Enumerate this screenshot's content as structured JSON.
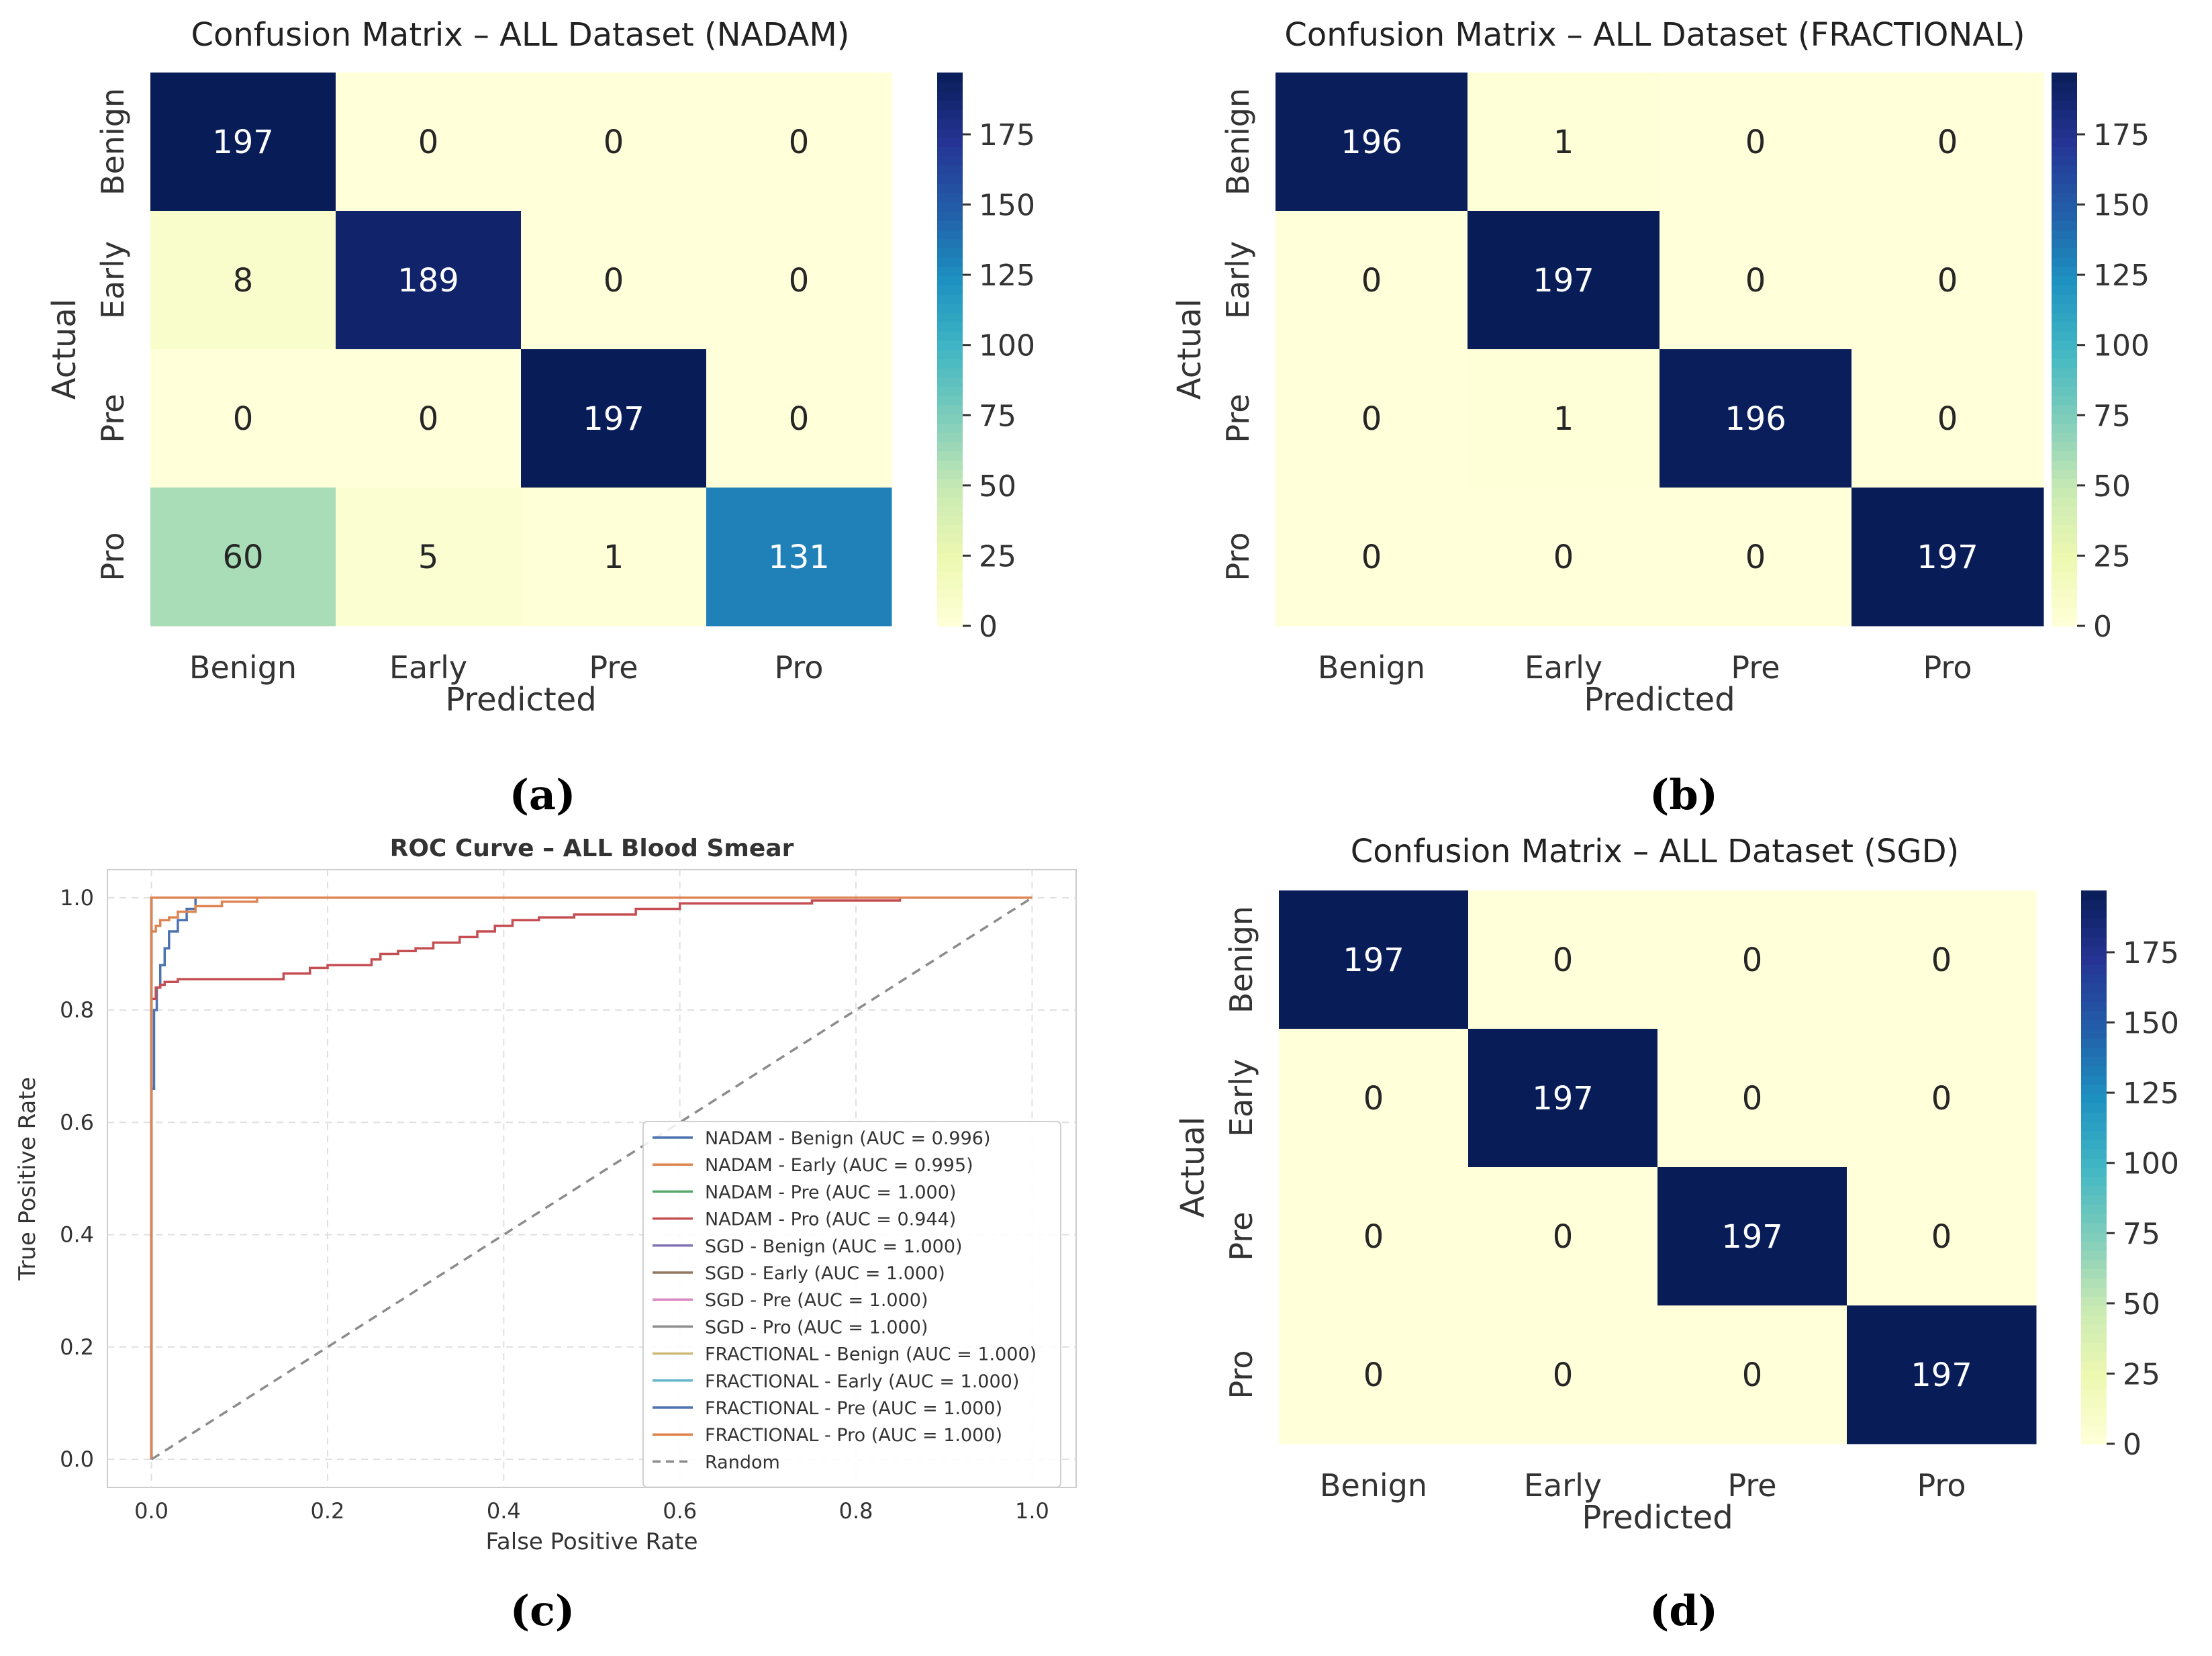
{
  "colors": {
    "cmap": [
      "#ffffd9",
      "#edf8b1",
      "#c7e9b4",
      "#7fcdbb",
      "#41b6c4",
      "#1d91c0",
      "#225ea8",
      "#253494",
      "#081d58"
    ],
    "random_line": "#8c8c8c",
    "grid": "#e0e0e0",
    "axis_text": "#222222"
  },
  "panels": {
    "a": {
      "caption": "(a)"
    },
    "b": {
      "caption": "(b)"
    },
    "c": {
      "caption": "(c)"
    },
    "d": {
      "caption": "(d)"
    }
  },
  "chart_data": [
    {
      "type": "heatmap",
      "panel": "a",
      "title": "Confusion Matrix – ALL Dataset (NADAM)",
      "xlabel": "Predicted",
      "ylabel": "Actual",
      "x_categories": [
        "Benign",
        "Early",
        "Pre",
        "Pro"
      ],
      "y_categories": [
        "Benign",
        "Early",
        "Pre",
        "Pro"
      ],
      "matrix": [
        [
          197,
          0,
          0,
          0
        ],
        [
          8,
          189,
          0,
          0
        ],
        [
          0,
          0,
          197,
          0
        ],
        [
          60,
          5,
          1,
          131
        ]
      ],
      "vmin": 0,
      "vmax": 197,
      "colorbar_ticks": [
        0,
        25,
        50,
        75,
        100,
        125,
        150,
        175
      ]
    },
    {
      "type": "heatmap",
      "panel": "b",
      "title": "Confusion Matrix – ALL Dataset (FRACTIONAL)",
      "xlabel": "Predicted",
      "ylabel": "Actual",
      "x_categories": [
        "Benign",
        "Early",
        "Pre",
        "Pro"
      ],
      "y_categories": [
        "Benign",
        "Early",
        "Pre",
        "Pro"
      ],
      "matrix": [
        [
          196,
          1,
          0,
          0
        ],
        [
          0,
          197,
          0,
          0
        ],
        [
          0,
          1,
          196,
          0
        ],
        [
          0,
          0,
          0,
          197
        ]
      ],
      "vmin": 0,
      "vmax": 197,
      "colorbar_ticks": [
        0,
        25,
        50,
        75,
        100,
        125,
        150,
        175
      ]
    },
    {
      "type": "line",
      "panel": "c",
      "title": "ROC Curve – ALL Blood Smear",
      "xlabel": "False Positive Rate",
      "ylabel": "True Positive Rate",
      "xlim": [
        -0.05,
        1.05
      ],
      "ylim": [
        -0.05,
        1.05
      ],
      "xticks": [
        0.0,
        0.2,
        0.4,
        0.6,
        0.8,
        1.0
      ],
      "yticks": [
        0.0,
        0.2,
        0.4,
        0.6,
        0.8,
        1.0
      ],
      "tick_labels": [
        "0.0",
        "0.2",
        "0.4",
        "0.6",
        "0.8",
        "1.0"
      ],
      "grid": true,
      "legend_position": "lower-right",
      "series": [
        {
          "name": "NADAM - Benign (AUC = 0.996)",
          "color": "#4c72b0",
          "x": [
            0,
            0,
            0.003,
            0.003,
            0.006,
            0.006,
            0.01,
            0.01,
            0.015,
            0.015,
            0.02,
            0.02,
            0.03,
            0.03,
            0.04,
            0.04,
            0.05,
            0.05,
            1
          ],
          "y": [
            0,
            0.66,
            0.66,
            0.8,
            0.8,
            0.84,
            0.84,
            0.88,
            0.88,
            0.91,
            0.91,
            0.94,
            0.94,
            0.96,
            0.96,
            0.98,
            0.98,
            1,
            1
          ]
        },
        {
          "name": "NADAM - Early (AUC = 0.995)",
          "color": "#dd8452",
          "x": [
            0,
            0,
            0.005,
            0.005,
            0.01,
            0.01,
            0.02,
            0.02,
            0.03,
            0.03,
            0.05,
            0.05,
            0.08,
            0.08,
            0.12,
            0.12,
            1
          ],
          "y": [
            0,
            0.94,
            0.94,
            0.95,
            0.95,
            0.96,
            0.96,
            0.965,
            0.965,
            0.975,
            0.975,
            0.985,
            0.985,
            0.993,
            0.993,
            1,
            1
          ]
        },
        {
          "name": "NADAM - Pre (AUC = 1.000)",
          "color": "#55a868",
          "x": [
            0,
            0,
            1
          ],
          "y": [
            0,
            1,
            1
          ]
        },
        {
          "name": "NADAM - Pro (AUC = 0.944)",
          "color": "#c44e52",
          "x": [
            0,
            0,
            0.005,
            0.005,
            0.01,
            0.01,
            0.015,
            0.015,
            0.03,
            0.03,
            0.15,
            0.15,
            0.18,
            0.18,
            0.2,
            0.2,
            0.25,
            0.25,
            0.26,
            0.26,
            0.28,
            0.28,
            0.3,
            0.3,
            0.32,
            0.32,
            0.35,
            0.35,
            0.37,
            0.37,
            0.39,
            0.39,
            0.41,
            0.41,
            0.44,
            0.44,
            0.48,
            0.48,
            0.55,
            0.55,
            0.6,
            0.6,
            0.75,
            0.75,
            0.85,
            0.85,
            1
          ],
          "y": [
            0,
            0.82,
            0.82,
            0.84,
            0.84,
            0.845,
            0.845,
            0.85,
            0.85,
            0.855,
            0.855,
            0.865,
            0.865,
            0.875,
            0.875,
            0.88,
            0.88,
            0.89,
            0.89,
            0.9,
            0.9,
            0.905,
            0.905,
            0.91,
            0.91,
            0.92,
            0.92,
            0.93,
            0.93,
            0.94,
            0.94,
            0.95,
            0.95,
            0.96,
            0.96,
            0.965,
            0.965,
            0.97,
            0.97,
            0.98,
            0.98,
            0.99,
            0.99,
            0.995,
            0.995,
            1,
            1
          ]
        },
        {
          "name": "SGD - Benign (AUC = 1.000)",
          "color": "#8172b3",
          "x": [
            0,
            0,
            1
          ],
          "y": [
            0,
            1,
            1
          ]
        },
        {
          "name": "SGD - Early (AUC = 1.000)",
          "color": "#937860",
          "x": [
            0,
            0,
            1
          ],
          "y": [
            0,
            1,
            1
          ]
        },
        {
          "name": "SGD - Pre (AUC = 1.000)",
          "color": "#da8bc3",
          "x": [
            0,
            0,
            1
          ],
          "y": [
            0,
            1,
            1
          ]
        },
        {
          "name": "SGD - Pro (AUC = 1.000)",
          "color": "#8c8c8c",
          "x": [
            0,
            0,
            1
          ],
          "y": [
            0,
            1,
            1
          ]
        },
        {
          "name": "FRACTIONAL - Benign (AUC = 1.000)",
          "color": "#ccb974",
          "x": [
            0,
            0,
            1
          ],
          "y": [
            0,
            1,
            1
          ]
        },
        {
          "name": "FRACTIONAL - Early (AUC = 1.000)",
          "color": "#64b5cd",
          "x": [
            0,
            0,
            1
          ],
          "y": [
            0,
            1,
            1
          ]
        },
        {
          "name": "FRACTIONAL - Pre (AUC = 1.000)",
          "color": "#4c72b0",
          "x": [
            0,
            0,
            1
          ],
          "y": [
            0,
            1,
            1
          ]
        },
        {
          "name": "FRACTIONAL - Pro (AUC = 1.000)",
          "color": "#dd8452",
          "x": [
            0,
            0,
            1
          ],
          "y": [
            0,
            1,
            1
          ]
        },
        {
          "name": "Random",
          "color": "#8c8c8c",
          "dashed": true,
          "x": [
            0,
            1
          ],
          "y": [
            0,
            1
          ]
        }
      ]
    },
    {
      "type": "heatmap",
      "panel": "d",
      "title": "Confusion Matrix – ALL Dataset (SGD)",
      "xlabel": "Predicted",
      "ylabel": "Actual",
      "x_categories": [
        "Benign",
        "Early",
        "Pre",
        "Pro"
      ],
      "y_categories": [
        "Benign",
        "Early",
        "Pre",
        "Pro"
      ],
      "matrix": [
        [
          197,
          0,
          0,
          0
        ],
        [
          0,
          197,
          0,
          0
        ],
        [
          0,
          0,
          197,
          0
        ],
        [
          0,
          0,
          0,
          197
        ]
      ],
      "vmin": 0,
      "vmax": 197,
      "colorbar_ticks": [
        0,
        25,
        50,
        75,
        100,
        125,
        150,
        175
      ]
    }
  ]
}
